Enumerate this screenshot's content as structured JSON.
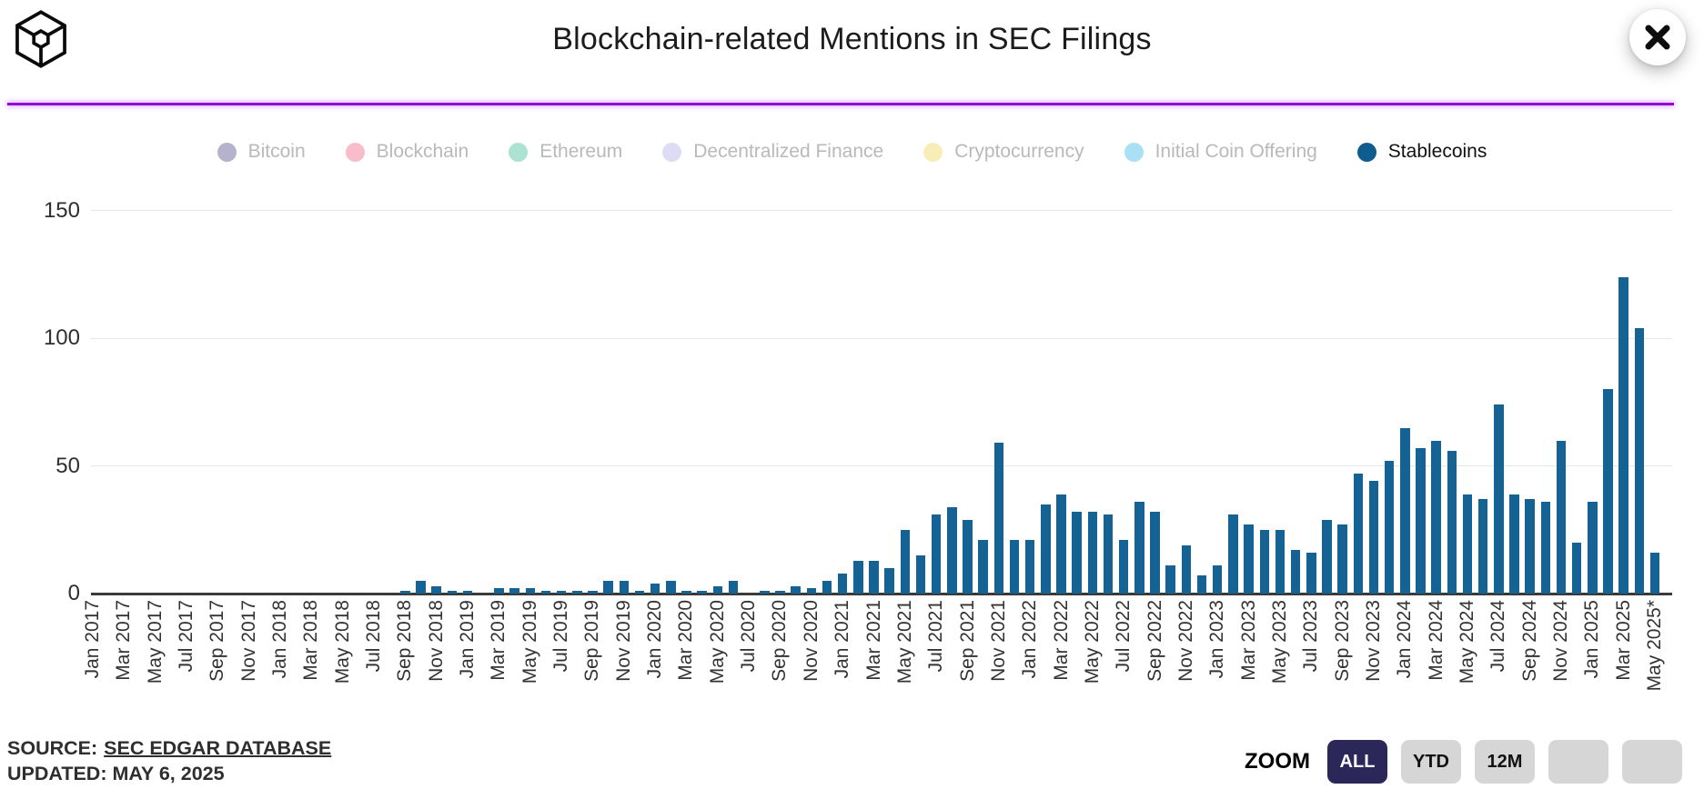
{
  "header": {
    "title": "Blockchain-related Mentions in SEC Filings"
  },
  "divider_color": "#9105d3",
  "legend": {
    "items": [
      {
        "label": "Bitcoin",
        "color": "#b5b2cb",
        "active": false
      },
      {
        "label": "Blockchain",
        "color": "#f8bcca",
        "active": false
      },
      {
        "label": "Ethereum",
        "color": "#abe2d2",
        "active": false
      },
      {
        "label": "Decentralized Finance",
        "color": "#dedbf5",
        "active": false
      },
      {
        "label": "Cryptocurrency",
        "color": "#f8edb7",
        "active": false
      },
      {
        "label": "Initial Coin Offering",
        "color": "#a9e0f5",
        "active": false
      },
      {
        "label": "Stablecoins",
        "color": "#0e5c90",
        "active": true
      }
    ]
  },
  "chart_data": {
    "type": "bar",
    "title": "Blockchain-related Mentions in SEC Filings",
    "series_name": "Stablecoins",
    "bar_color": "#156394",
    "ylim": [
      0,
      150
    ],
    "yticks": [
      0,
      50,
      100,
      150
    ],
    "grid": "horizontal",
    "legend_position": "top",
    "x": [
      "Jan 2017",
      "Feb 2017",
      "Mar 2017",
      "Apr 2017",
      "May 2017",
      "Jun 2017",
      "Jul 2017",
      "Aug 2017",
      "Sep 2017",
      "Oct 2017",
      "Nov 2017",
      "Dec 2017",
      "Jan 2018",
      "Feb 2018",
      "Mar 2018",
      "Apr 2018",
      "May 2018",
      "Jun 2018",
      "Jul 2018",
      "Aug 2018",
      "Sep 2018",
      "Oct 2018",
      "Nov 2018",
      "Dec 2018",
      "Jan 2019",
      "Feb 2019",
      "Mar 2019",
      "Apr 2019",
      "May 2019",
      "Jun 2019",
      "Jul 2019",
      "Aug 2019",
      "Sep 2019",
      "Oct 2019",
      "Nov 2019",
      "Dec 2019",
      "Jan 2020",
      "Feb 2020",
      "Mar 2020",
      "Apr 2020",
      "May 2020",
      "Jun 2020",
      "Jul 2020",
      "Aug 2020",
      "Sep 2020",
      "Oct 2020",
      "Nov 2020",
      "Dec 2020",
      "Jan 2021",
      "Feb 2021",
      "Mar 2021",
      "Apr 2021",
      "May 2021",
      "Jun 2021",
      "Jul 2021",
      "Aug 2021",
      "Sep 2021",
      "Oct 2021",
      "Nov 2021",
      "Dec 2021",
      "Jan 2022",
      "Feb 2022",
      "Mar 2022",
      "Apr 2022",
      "May 2022",
      "Jun 2022",
      "Jul 2022",
      "Aug 2022",
      "Sep 2022",
      "Oct 2022",
      "Nov 2022",
      "Dec 2022",
      "Jan 2023",
      "Feb 2023",
      "Mar 2023",
      "Apr 2023",
      "May 2023",
      "Jun 2023",
      "Jul 2023",
      "Aug 2023",
      "Sep 2023",
      "Oct 2023",
      "Nov 2023",
      "Dec 2023",
      "Jan 2024",
      "Feb 2024",
      "Mar 2024",
      "Apr 2024",
      "May 2024",
      "Jun 2024",
      "Jul 2024",
      "Aug 2024",
      "Sep 2024",
      "Oct 2024",
      "Nov 2024",
      "Dec 2024",
      "Jan 2025",
      "Feb 2025",
      "Mar 2025",
      "Apr 2025",
      "May 2025"
    ],
    "values": [
      0,
      0,
      0,
      0,
      0,
      0,
      0,
      0,
      0,
      0,
      0,
      0,
      0,
      0,
      0,
      0,
      0,
      0,
      0,
      0,
      1,
      5,
      3,
      1,
      1,
      0,
      2,
      2,
      2,
      1,
      1,
      1,
      1,
      5,
      5,
      1,
      4,
      5,
      1,
      1,
      3,
      5,
      0,
      1,
      1,
      3,
      2,
      5,
      8,
      13,
      13,
      10,
      25,
      15,
      31,
      34,
      29,
      21,
      59,
      21,
      21,
      35,
      39,
      32,
      32,
      31,
      21,
      36,
      32,
      11,
      19,
      7,
      11,
      31,
      27,
      25,
      25,
      17,
      16,
      29,
      27,
      47,
      44,
      52,
      65,
      57,
      60,
      56,
      39,
      37,
      74,
      39,
      37,
      36,
      60,
      20,
      36,
      80,
      124,
      104,
      16
    ],
    "x_tick_labels": [
      "Jan 2017",
      "Mar 2017",
      "May 2017",
      "Jul 2017",
      "Sep 2017",
      "Nov 2017",
      "Jan 2018",
      "Mar 2018",
      "May 2018",
      "Jul 2018",
      "Sep 2018",
      "Nov 2018",
      "Jan 2019",
      "Mar 2019",
      "May 2019",
      "Jul 2019",
      "Sep 2019",
      "Nov 2019",
      "Jan 2020",
      "Mar 2020",
      "May 2020",
      "Jul 2020",
      "Sep 2020",
      "Nov 2020",
      "Jan 2021",
      "Mar 2021",
      "May 2021",
      "Jul 2021",
      "Sep 2021",
      "Nov 2021",
      "Jan 2022",
      "Mar 2022",
      "May 2022",
      "Jul 2022",
      "Sep 2022",
      "Nov 2022",
      "Jan 2023",
      "Mar 2023",
      "May 2023",
      "Jul 2023",
      "Sep 2023",
      "Nov 2023",
      "Jan 2024",
      "Mar 2024",
      "May 2024",
      "Jul 2024",
      "Sep 2024",
      "Nov 2024",
      "Jan 2025",
      "Mar 2025",
      "May 2025*"
    ]
  },
  "footer": {
    "source_prefix": "SOURCE:",
    "source_link": "SEC EDGAR DATABASE",
    "updated": "UPDATED: MAY 6, 2025",
    "zoom_label": "ZOOM",
    "zoom_button_active_color": "#2b2759",
    "zoom_button_inactive_color": "#d6d6d6",
    "zoom_buttons": [
      {
        "label": "ALL",
        "active": true
      },
      {
        "label": "YTD",
        "active": false
      },
      {
        "label": "12M",
        "active": false
      },
      {
        "label": "",
        "active": false
      },
      {
        "label": "",
        "active": false
      }
    ]
  }
}
